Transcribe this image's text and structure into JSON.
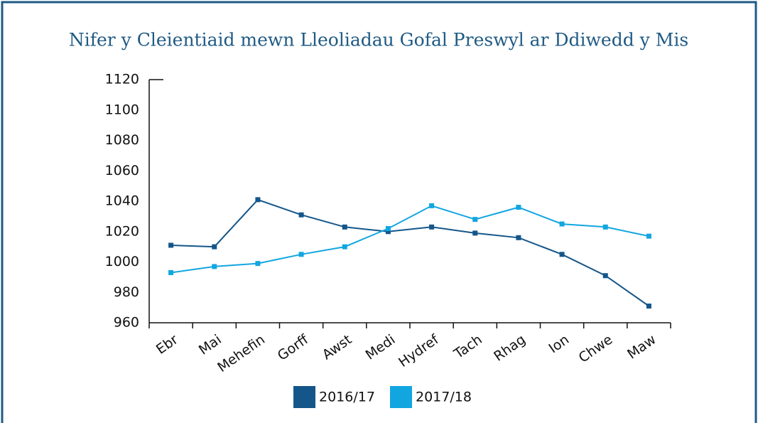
{
  "chart_data": {
    "type": "line",
    "title": "Nifer y Cleientiaid mewn Lleoliadau Gofal Preswyl ar Ddiwedd y Mis",
    "categories": [
      "Ebr",
      "Mai",
      "Mehefin",
      "Gorff",
      "Awst",
      "Medi",
      "Hydref",
      "Tach",
      "Rhag",
      "Ion",
      "Chwe",
      "Maw"
    ],
    "series": [
      {
        "name": "2016/17",
        "color": "#14568a",
        "values": [
          1011,
          1010,
          1041,
          1031,
          1023,
          1020,
          1023,
          1019,
          1016,
          1005,
          991,
          971
        ]
      },
      {
        "name": "2017/18",
        "color": "#12a6e0",
        "values": [
          993,
          997,
          999,
          1005,
          1010,
          1022,
          1037,
          1028,
          1036,
          1025,
          1023,
          1017
        ]
      }
    ],
    "ylim": [
      960,
      1120
    ],
    "yticks": [
      960,
      980,
      1000,
      1020,
      1040,
      1060,
      1080,
      1100,
      1120
    ],
    "grid": false,
    "legend": "bottom"
  }
}
